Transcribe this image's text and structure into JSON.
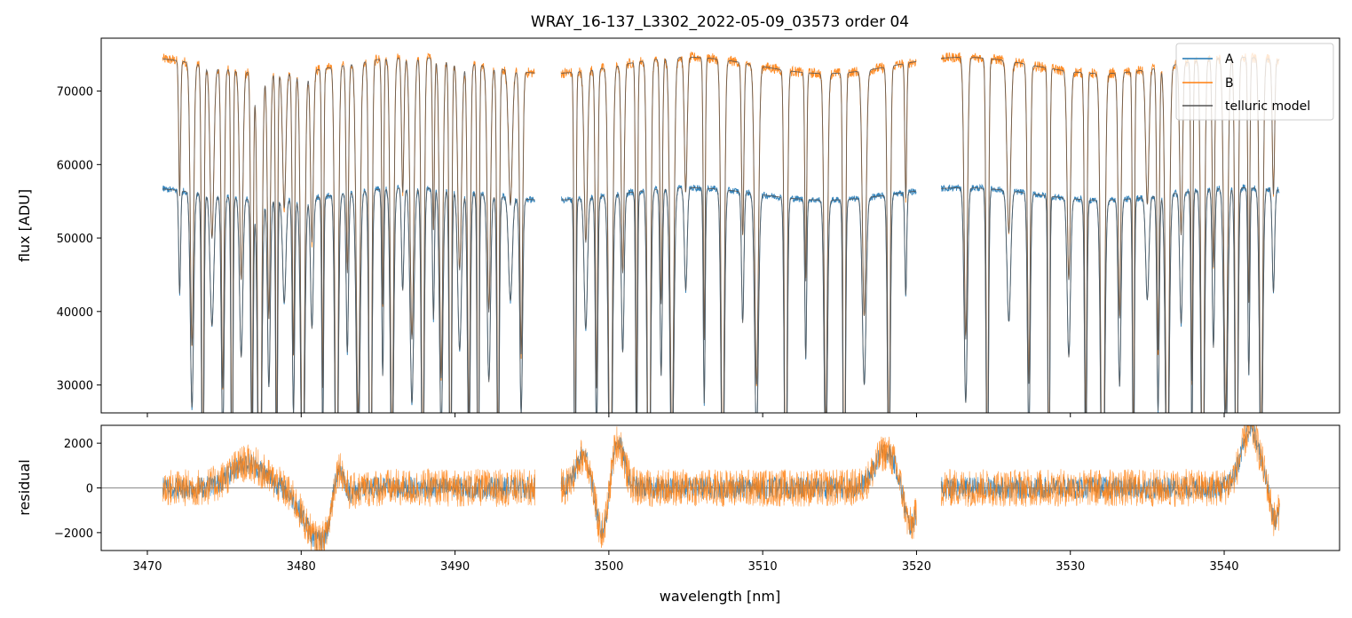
{
  "chart_data": [
    {
      "type": "line",
      "panel": "top",
      "title": "WRAY_16-137_L3302_2022-05-09_03573  order 04",
      "xlabel": "",
      "ylabel": "flux [ADU]",
      "xlim": [
        3467,
        3547.5
      ],
      "ylim": [
        26200,
        77200
      ],
      "xticks": [
        3470,
        3480,
        3490,
        3500,
        3510,
        3520,
        3530,
        3540
      ],
      "yticks": [
        30000,
        40000,
        50000,
        60000,
        70000
      ],
      "ytick_labels": [
        "30000",
        "40000",
        "50000",
        "60000",
        "70000"
      ],
      "legend": {
        "position": "top-right",
        "entries": [
          "A",
          "B",
          "telluric model"
        ]
      },
      "series": [
        {
          "name": "A",
          "color": "#1f77b4",
          "continuum": 56000,
          "segments": [
            [
              3471.0,
              3495.2
            ],
            [
              3496.9,
              3520.0
            ],
            [
              3521.6,
              3543.6
            ]
          ]
        },
        {
          "name": "B",
          "color": "#ff7f0e",
          "continuum": 73500,
          "segments": [
            [
              3471.0,
              3495.2
            ],
            [
              3496.9,
              3520.0
            ],
            [
              3521.6,
              3543.6
            ]
          ]
        },
        {
          "name": "telluric model",
          "color": "#555555",
          "continuum_A": 56000,
          "continuum_B": 73500
        }
      ],
      "absorption_lines": [
        3472.1,
        3472.9,
        3473.6,
        3474.2,
        3474.9,
        3475.5,
        3476.1,
        3476.8,
        3477.3,
        3477.9,
        3478.4,
        3478.9,
        3479.5,
        3480.1,
        3480.7,
        3481.4,
        3482.3,
        3483.0,
        3483.7,
        3484.5,
        3485.3,
        3485.9,
        3486.6,
        3487.2,
        3487.9,
        3488.6,
        3489.1,
        3489.7,
        3490.3,
        3490.9,
        3491.5,
        3492.2,
        3492.8,
        3493.6,
        3494.3,
        3497.8,
        3498.5,
        3499.2,
        3500.1,
        3500.9,
        3501.8,
        3502.6,
        3503.4,
        3504.1,
        3505.0,
        3506.2,
        3507.4,
        3508.7,
        3509.6,
        3511.5,
        3512.8,
        3514.1,
        3515.3,
        3516.6,
        3518.2,
        3519.3,
        3523.2,
        3524.6,
        3526.0,
        3527.3,
        3528.6,
        3529.9,
        3531.0,
        3532.1,
        3533.2,
        3534.1,
        3535.0,
        3535.7,
        3536.3,
        3537.2,
        3537.9,
        3538.6,
        3539.3,
        3540.1,
        3540.8,
        3541.6,
        3542.4,
        3543.2
      ]
    },
    {
      "type": "line",
      "panel": "bottom",
      "xlabel": "wavelength [nm]",
      "ylabel": "residual",
      "xlim": [
        3467,
        3547.5
      ],
      "ylim": [
        -2800,
        2800
      ],
      "xticks": [
        3470,
        3480,
        3490,
        3500,
        3510,
        3520,
        3530,
        3540
      ],
      "xtick_labels": [
        "3470",
        "3480",
        "3490",
        "3500",
        "3510",
        "3520",
        "3530",
        "3540"
      ],
      "yticks": [
        -2000,
        0,
        2000
      ],
      "ytick_labels": [
        "−2000",
        "0",
        "2000"
      ],
      "zero_line": 0,
      "series": [
        {
          "name": "A",
          "color": "#1f77b4",
          "noise": 500
        },
        {
          "name": "B",
          "color": "#ff7f0e",
          "noise": 850
        }
      ],
      "features": [
        {
          "center": 3476.5,
          "amplitude": 1100,
          "width": 1.1
        },
        {
          "center": 3481.2,
          "amplitude": -2400,
          "width": 1.0
        },
        {
          "center": 3482.4,
          "amplitude": 2000,
          "width": 0.35
        },
        {
          "center": 3498.4,
          "amplitude": 1500,
          "width": 0.5
        },
        {
          "center": 3499.6,
          "amplitude": -2300,
          "width": 0.45
        },
        {
          "center": 3500.5,
          "amplitude": 2300,
          "width": 0.45
        },
        {
          "center": 3518.0,
          "amplitude": 1600,
          "width": 0.7
        },
        {
          "center": 3519.6,
          "amplitude": -1800,
          "width": 0.4
        },
        {
          "center": 3541.7,
          "amplitude": 2600,
          "width": 0.6
        },
        {
          "center": 3543.3,
          "amplitude": -1500,
          "width": 0.3
        }
      ]
    }
  ]
}
